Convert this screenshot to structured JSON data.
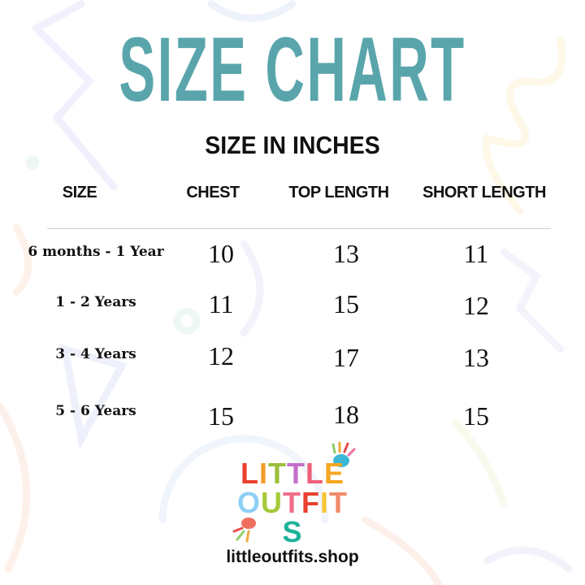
{
  "title": "SIZE CHART",
  "subtitle": "SIZE IN INCHES",
  "colors": {
    "title": "#5aa5ac"
  },
  "table": {
    "headers": [
      "SIZE",
      "CHEST",
      "TOP LENGTH",
      "SHORT LENGTH"
    ],
    "rows": [
      {
        "size": "6 months - 1 Year",
        "chest": "10",
        "top_length": "13",
        "short_length": "11"
      },
      {
        "size": "1 - 2 Years",
        "chest": "11",
        "top_length": "15",
        "short_length": "12"
      },
      {
        "size": "3 - 4 Years",
        "chest": "12",
        "top_length": "17",
        "short_length": "13"
      },
      {
        "size": "5 - 6 Years",
        "chest": "15",
        "top_length": "18",
        "short_length": "15"
      }
    ]
  },
  "logo": {
    "line1": "LITTLE",
    "line2": "OUTFITS"
  },
  "website": "littleoutfits.shop"
}
